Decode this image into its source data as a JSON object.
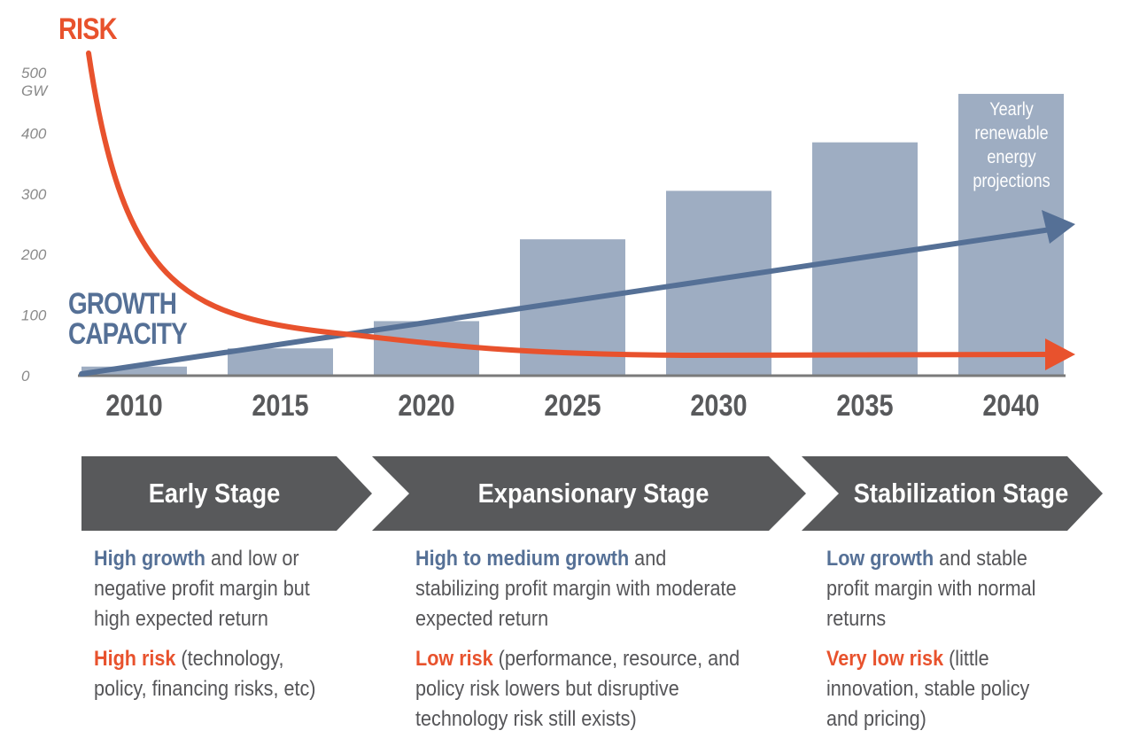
{
  "chart_data": {
    "type": "bar",
    "categories": [
      "2010",
      "2015",
      "2020",
      "2025",
      "2030",
      "2035",
      "2040"
    ],
    "values": [
      15,
      45,
      90,
      225,
      305,
      385,
      465
    ],
    "ylim": [
      0,
      500
    ],
    "yticks": [
      "0",
      "100",
      "200",
      "300",
      "400",
      "500"
    ],
    "yunit": "GW",
    "bar_annotation": "Yearly renewable energy projections",
    "risk_label": "RISK",
    "growth_label": [
      "GROWTH",
      "CAPACITY"
    ],
    "colors": {
      "bar": "#9eadc2",
      "risk": "#e8522d",
      "growth": "#557096",
      "axis": "#7a7a7a"
    },
    "grid": false
  },
  "stages": [
    {
      "label": "Early Stage",
      "growth_lead": "High growth",
      "growth_rest": " and low or",
      "growth_lines": [
        "negative profit margin but",
        "high expected return"
      ],
      "risk_lead": "High risk",
      "risk_rest": " (technology,",
      "risk_lines": [
        "policy, financing risks, etc)"
      ]
    },
    {
      "label": "Expansionary Stage",
      "growth_lead": "High to medium growth",
      "growth_rest": " and",
      "growth_lines": [
        "stabilizing profit margin with moderate",
        "expected return"
      ],
      "risk_lead": "Low risk",
      "risk_rest": " (performance, resource, and",
      "risk_lines": [
        "policy risk lowers but disruptive",
        "technology risk still exists)"
      ]
    },
    {
      "label": "Stabilization Stage",
      "growth_lead": "Low growth",
      "growth_rest": " and stable",
      "growth_lines": [
        "profit margin with normal",
        "returns"
      ],
      "risk_lead": "Very low risk",
      "risk_rest": " (little",
      "risk_lines": [
        "innovation, stable policy",
        "and pricing)"
      ]
    }
  ]
}
